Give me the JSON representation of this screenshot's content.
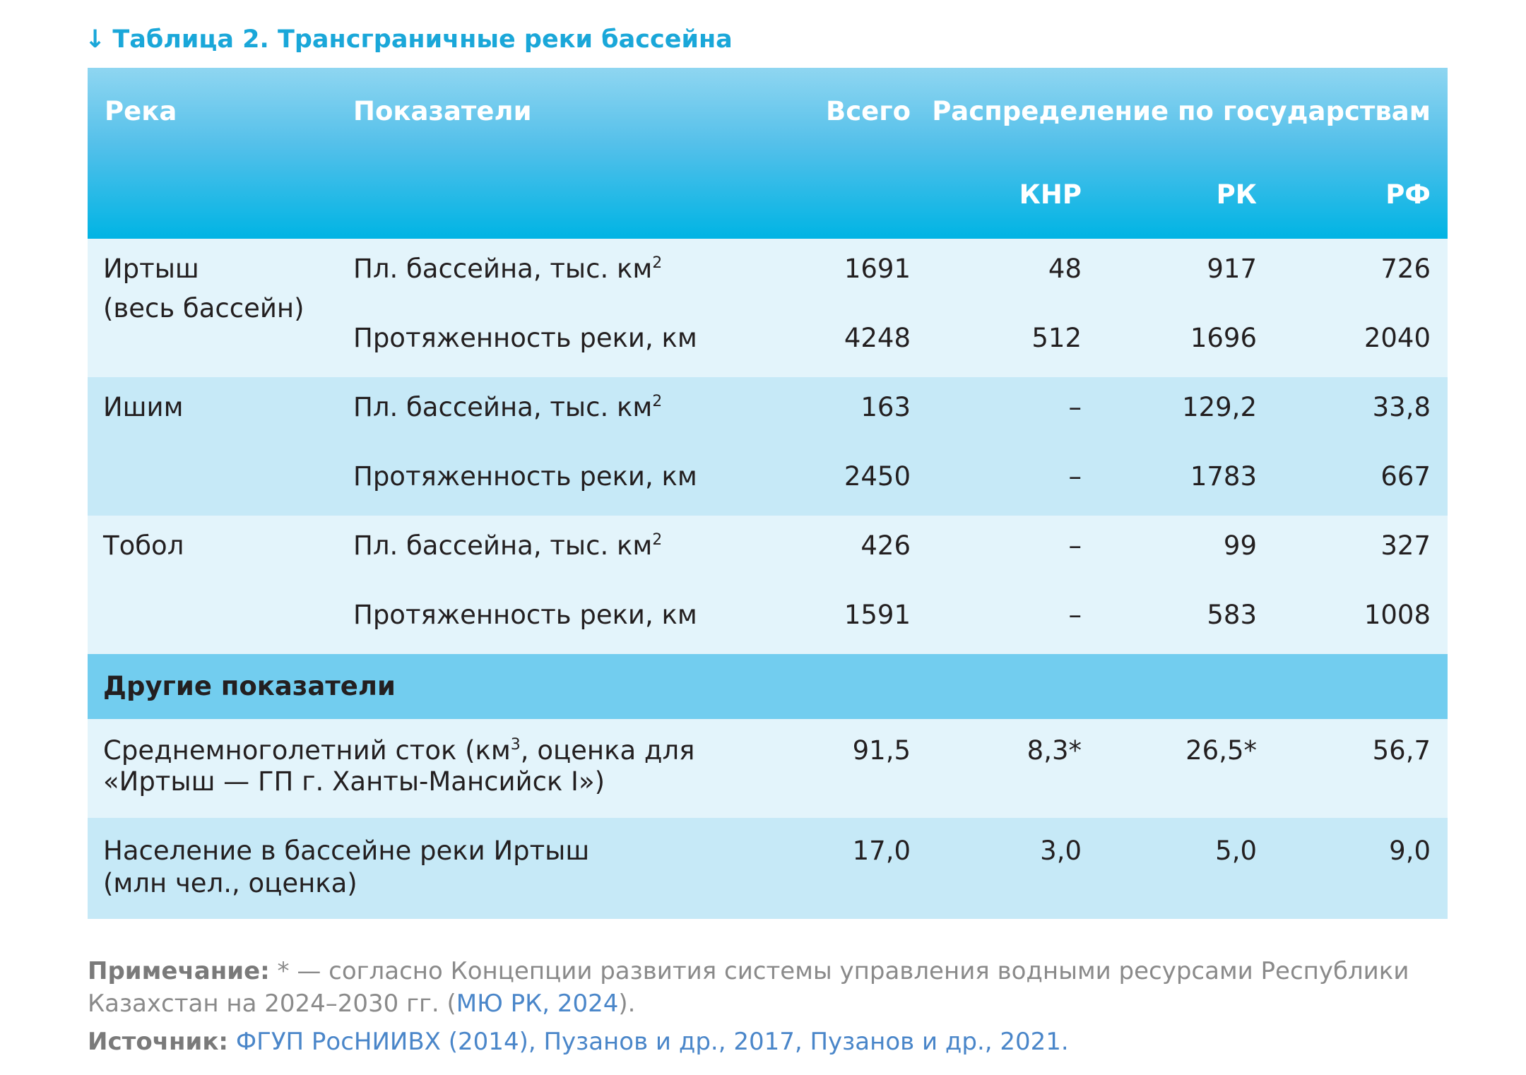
{
  "title": {
    "arrow": "↓",
    "text": "Таблица 2. Трансграничные реки бассейна"
  },
  "header": {
    "river": "Река",
    "indicators": "Показатели",
    "total": "Всего",
    "distribution": "Распределение по государствам",
    "knr": "КНР",
    "rk": "РК",
    "rf": "РФ"
  },
  "rivers": [
    {
      "name_line1": "Иртыш",
      "name_line2": "(весь бассейн)",
      "rows": [
        {
          "indicator": "Пл. бассейна, тыс. км",
          "sup": "2",
          "total": "1691",
          "knr": "48",
          "rk": "917",
          "rf": "726"
        },
        {
          "indicator": "Протяженность реки, км",
          "sup": "",
          "total": "4248",
          "knr": "512",
          "rk": "1696",
          "rf": "2040"
        }
      ]
    },
    {
      "name_line1": "Ишим",
      "name_line2": "",
      "rows": [
        {
          "indicator": "Пл. бассейна, тыс. км",
          "sup": "2",
          "total": "163",
          "knr": "–",
          "rk": "129,2",
          "rf": "33,8"
        },
        {
          "indicator": "Протяженность реки, км",
          "sup": "",
          "total": "2450",
          "knr": "–",
          "rk": "1783",
          "rf": "667"
        }
      ]
    },
    {
      "name_line1": "Тобол",
      "name_line2": "",
      "rows": [
        {
          "indicator": "Пл. бассейна, тыс. км",
          "sup": "2",
          "total": "426",
          "knr": "–",
          "rk": "99",
          "rf": "327"
        },
        {
          "indicator": "Протяженность реки, км",
          "sup": "",
          "total": "1591",
          "knr": "–",
          "rk": "583",
          "rf": "1008"
        }
      ]
    }
  ],
  "other": {
    "label": "Другие показатели",
    "rows": [
      {
        "line1a": "Среднемноголетний сток (км",
        "line1sup": "3",
        "line1b": ", оценка для",
        "line2": "«Иртыш — ГП г. Ханты-Мансийск I»)",
        "total": "91,5",
        "knr": "8,3*",
        "rk": "26,5*",
        "rf": "56,7"
      },
      {
        "line1a": "Население в бассейне реки Иртыш",
        "line1sup": "",
        "line1b": "",
        "line2": "(млн чел., оценка)",
        "total": "17,0",
        "knr": "3,0",
        "rk": "5,0",
        "rf": "9,0"
      }
    ]
  },
  "note": {
    "label": "Примечание:",
    "text1": " * — согласно Концепции развития системы управления водными ресурсами Республики Казахстан на 2024–2030 гг. (",
    "link": "МЮ РК, 2024",
    "text2": ")."
  },
  "source": {
    "label": "Источник:",
    "links": "ФГУП РосНИИВХ (2014), Пузанов и др., 2017, Пузанов и др., 2021."
  }
}
